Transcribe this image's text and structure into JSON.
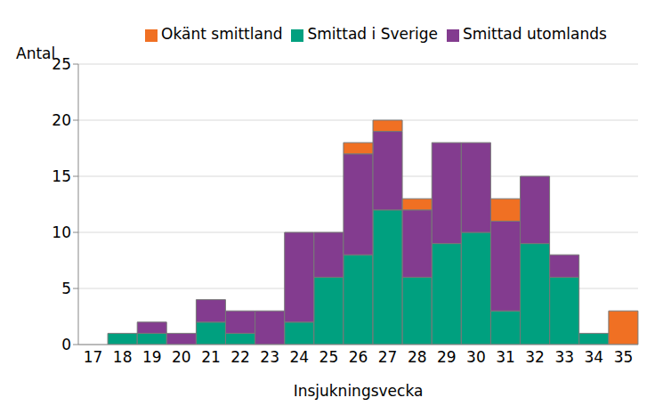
{
  "chart_data": {
    "type": "bar",
    "stacked": true,
    "x_label": "Insjukningsvecka",
    "y_label": "Antal",
    "categories": [
      "17",
      "18",
      "19",
      "20",
      "21",
      "22",
      "23",
      "24",
      "25",
      "26",
      "27",
      "28",
      "29",
      "30",
      "31",
      "32",
      "33",
      "34",
      "35"
    ],
    "series": [
      {
        "name": "Smittad i Sverige",
        "color": "#00a07f",
        "values": [
          0,
          1,
          1,
          0,
          2,
          1,
          0,
          2,
          6,
          8,
          12,
          6,
          9,
          10,
          3,
          9,
          6,
          1,
          0
        ]
      },
      {
        "name": "Smittad utomlands",
        "color": "#833c8f",
        "values": [
          0,
          0,
          1,
          1,
          2,
          2,
          3,
          8,
          4,
          9,
          7,
          6,
          9,
          8,
          8,
          6,
          2,
          0,
          0
        ]
      },
      {
        "name": "Okänt smittland",
        "color": "#f07023",
        "values": [
          0,
          0,
          0,
          0,
          0,
          0,
          0,
          0,
          0,
          1,
          1,
          1,
          0,
          0,
          2,
          0,
          0,
          0,
          3
        ]
      }
    ],
    "ylim": [
      0,
      25
    ],
    "yticks": [
      0,
      5,
      10,
      15,
      20,
      25
    ],
    "grid": true,
    "legend": "top"
  }
}
